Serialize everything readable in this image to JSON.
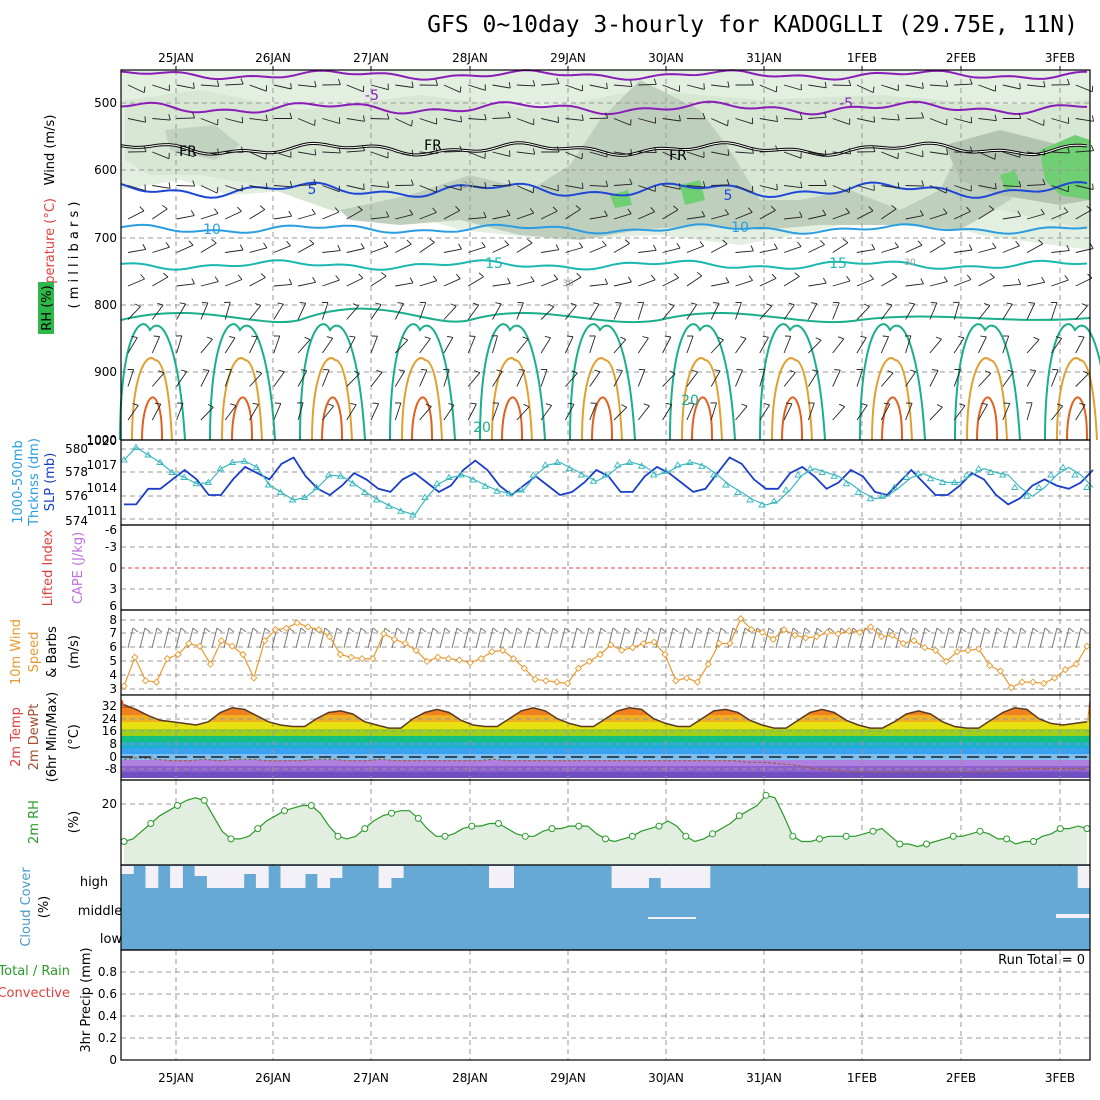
{
  "title": "GFS 0~10day 3-hourly for KADOGLLI (29.75E, 11N)",
  "dates": [
    "25JAN",
    "26JAN",
    "27JAN",
    "28JAN",
    "29JAN",
    "30JAN",
    "31JAN",
    "1FEB",
    "2FEB",
    "3FEB"
  ],
  "colors": {
    "purple": "#8a1db8",
    "blue": "#1f47d6",
    "lightblue": "#2a9ee0",
    "teal": "#1ab8b0",
    "green": "#1aae8c",
    "orange": "#e0a030",
    "darkorange": "#e06020",
    "red": "#d02030",
    "wind": "#e89a30",
    "cloud": "#66a9d4",
    "rh_green": "#2a9a2a",
    "thick": "#3ab8c0",
    "slp": "#1a3ec8"
  },
  "panels": {
    "upper": {
      "ylabel_wind": "Wind (m/s)",
      "ylabel_temp": "Temperature (°C)",
      "ylabel_units": "( m i l l i b a r s )",
      "ylabel_rh": "RH (%)",
      "ticks": [
        "500",
        "600",
        "700",
        "800",
        "900",
        "1000"
      ],
      "contour_labels": [
        "-5",
        "-5",
        "FR",
        "FR",
        "FR",
        "5",
        "5",
        "10",
        "10",
        "15",
        "15",
        "20",
        "20",
        "30",
        "30",
        "30"
      ]
    },
    "slp": {
      "ylabel_left": "1000-500mb",
      "ylabel_left2": "Thcknss (dm)",
      "ylabel_right": "SLP (mb)",
      "ticks_left": [
        "580",
        "578",
        "576",
        "574"
      ],
      "ticks_right": [
        "1020",
        "1017",
        "1014",
        "1011"
      ]
    },
    "li": {
      "ylabel_left": "Lifted Index",
      "ylabel_right": "CAPE (J/kg)",
      "ticks": [
        "-6",
        "-3",
        "0",
        "3",
        "6"
      ]
    },
    "wind": {
      "ylabel_line1": "10m Wind",
      "ylabel_line2": "Speed",
      "ylabel_line3": "& Barbs",
      "ylabel_units": "(m/s)",
      "ticks": [
        "8",
        "7",
        "6",
        "5",
        "4",
        "3"
      ]
    },
    "temp": {
      "ylabel_line1": "2m Temp",
      "ylabel_line2": "2m DewPt",
      "ylabel_line3": "(6hr Min/Max)",
      "ylabel_units": "(°C)",
      "ticks": [
        "32",
        "24",
        "16",
        "8",
        "0",
        "-8"
      ]
    },
    "rh": {
      "ylabel": "2m RH",
      "ylabel_units": "(%)",
      "ticks": [
        "20"
      ]
    },
    "cloud": {
      "ylabel": "Cloud Cover",
      "ylabel_units": "(%)",
      "levels": [
        "high",
        "middle",
        "low"
      ]
    },
    "precip": {
      "ylabel_line1": "Total / Rain",
      "ylabel_line2": "Convective",
      "ylabel_units": "3hr Precip (mm)",
      "run_total": "Run Total = 0",
      "ticks": [
        "0.8",
        "0.6",
        "0.4",
        "0.2",
        "0"
      ]
    }
  },
  "chart_data": [
    {
      "type": "line",
      "name": "slp_thickness",
      "x_unit": "3-hourly steps",
      "series": [
        {
          "name": "SLP (mb)",
          "axis": "right",
          "values": [
            1010.5,
            1010.5,
            1013,
            1013,
            1014.5,
            1016,
            1014.5,
            1012,
            1012,
            1014.5,
            1016.5,
            1015.5,
            1014.5,
            1017,
            1018,
            1015,
            1013,
            1012,
            1013.5,
            1015.5,
            1014.5,
            1013,
            1012.5,
            1014.5,
            1015.5,
            1014,
            1012.5,
            1013.5,
            1016,
            1017.5,
            1016,
            1013.5,
            1012,
            1013.5,
            1015,
            1013.5,
            1012,
            1012.5,
            1014,
            1016,
            1015,
            1012.5,
            1012.5,
            1015,
            1016.5,
            1015.5,
            1014,
            1012.5,
            1013,
            1015.5,
            1018,
            1017,
            1014.5,
            1013,
            1013,
            1015.5,
            1016.5,
            1015,
            1013,
            1014,
            1016,
            1015,
            1012.5,
            1012,
            1014,
            1016,
            1014,
            1012,
            1012,
            1013.5,
            1015.5,
            1014.5,
            1012,
            1010.5,
            1011.5,
            1013.5,
            1014.5,
            1013.5,
            1013,
            1014,
            1016
          ]
        },
        {
          "name": "1000-500mb Thickness (dm)",
          "axis": "left",
          "values": [
            578.8,
            579.8,
            579.2,
            578.6,
            577.8,
            577.4,
            576.9,
            577,
            578.1,
            578.6,
            578.7,
            578.2,
            576.8,
            576.2,
            575.6,
            575.8,
            576.6,
            577.6,
            577.5,
            576.9,
            576.2,
            575.6,
            575.1,
            574.7,
            574.4,
            575.8,
            576.9,
            577.4,
            577.6,
            577.2,
            576.7,
            576.3,
            576.1,
            576.4,
            577.6,
            578.4,
            578.6,
            578.1,
            577.6,
            577.1,
            577.6,
            578.4,
            578.6,
            578.3,
            577.6,
            577.9,
            578.4,
            578.6,
            578.3,
            577.6,
            576.8,
            576.2,
            575.6,
            575.2,
            575.5,
            576.4,
            577.6,
            578.1,
            577.8,
            577.5,
            576.9,
            576.2,
            575.7,
            575.9,
            576.6,
            577.4,
            577.7,
            577.3,
            577,
            577,
            577.6,
            578.1,
            577.8,
            577.6,
            576.6,
            575.9,
            576.6,
            577.6,
            578.2,
            577.6,
            576.6
          ]
        }
      ],
      "ylim_left": [
        574,
        580
      ],
      "ylim_right": [
        1008,
        1020
      ]
    },
    {
      "type": "line",
      "name": "lifted_index",
      "series": [
        {
          "name": "Lifted Index",
          "values": [
            0,
            0,
            0,
            0,
            0,
            0,
            0,
            0,
            0,
            0
          ]
        }
      ],
      "ylim": [
        6,
        -6
      ]
    },
    {
      "type": "line",
      "name": "wind_speed_10m",
      "series": [
        {
          "name": "10m Wind Speed (m/s)",
          "values": [
            3.2,
            5.3,
            3.6,
            3.5,
            5.2,
            5.5,
            6.3,
            6.1,
            4.8,
            6.5,
            6.1,
            5.5,
            3.8,
            6.5,
            7.3,
            7.4,
            7.8,
            7.5,
            7.3,
            6.8,
            5.5,
            5.3,
            5.2,
            5.2,
            7,
            6.6,
            6.3,
            5.8,
            5,
            5.3,
            5.2,
            5.1,
            4.9,
            5.2,
            5.7,
            5.8,
            5.2,
            4.5,
            3.7,
            3.6,
            3.5,
            3.4,
            4.5,
            5,
            5.5,
            6.2,
            5.8,
            6,
            6.3,
            6.4,
            5.5,
            3.6,
            3.8,
            3.5,
            4.8,
            6.3,
            6.3,
            8.1,
            7.3,
            7.1,
            6.6,
            7.3,
            6.9,
            6.7,
            6.8,
            7.1,
            7,
            7.2,
            7.1,
            7.5,
            6.8,
            6.9,
            6.3,
            6.5,
            6,
            5.8,
            5,
            5.7,
            5.8,
            5.9,
            4.7,
            4.3,
            3.1,
            3.5,
            3.5,
            3.4,
            3.8,
            4.4,
            4.8,
            6.1
          ]
        }
      ],
      "ylim": [
        3,
        8
      ]
    },
    {
      "type": "area",
      "name": "temp_2m",
      "series": [
        {
          "name": "2m Temp (°C)",
          "values": [
            33,
            30,
            26,
            23,
            22,
            21,
            20,
            22,
            28,
            31,
            30,
            26,
            22,
            20,
            19,
            19,
            24,
            28,
            29,
            27,
            22,
            20,
            18,
            18,
            24,
            28,
            30,
            28,
            23,
            20,
            19,
            19,
            24,
            29,
            31,
            29,
            24,
            21,
            19,
            19,
            24,
            29,
            31,
            30,
            24,
            21,
            19,
            19,
            24,
            29,
            30,
            28,
            23,
            20,
            18,
            18,
            23,
            28,
            30,
            28,
            23,
            20,
            18,
            18,
            22,
            27,
            29,
            27,
            22,
            19,
            18,
            18,
            23,
            28,
            31,
            30,
            24,
            21,
            20,
            21,
            22
          ]
        },
        {
          "name": "2m DewPt (°C)",
          "values": [
            -2,
            -1,
            -2,
            -3,
            -3,
            -2,
            -3,
            -2,
            -2,
            -3,
            -3,
            -3,
            -2,
            -2,
            -3,
            -3,
            -2,
            -3,
            -3,
            -3,
            -3,
            -3,
            -3,
            -2,
            -3,
            -3,
            -3,
            -3,
            -3,
            -3,
            -3,
            -3,
            -3,
            -3,
            -3,
            -3,
            -3,
            -3,
            -3,
            -4,
            -4,
            -5,
            -6,
            -8,
            -9,
            -10,
            -10,
            -10,
            -10,
            -10,
            -10,
            -10,
            -10,
            -10,
            -10,
            -9,
            -8,
            -8,
            -8,
            -8,
            -8
          ]
        }
      ],
      "ylim": [
        -14,
        36
      ]
    },
    {
      "type": "area",
      "name": "rh_2m",
      "series": [
        {
          "name": "2m RH (%)",
          "values": [
            8,
            9,
            12,
            15,
            18,
            20,
            22,
            24,
            25,
            24,
            18,
            12,
            9,
            9,
            10,
            13,
            16,
            18,
            20,
            21,
            22,
            22,
            19,
            14,
            10,
            9,
            10,
            13,
            16,
            18,
            19,
            20,
            20,
            17,
            13,
            10,
            10,
            11,
            13,
            14,
            14,
            15,
            15,
            13,
            11,
            10,
            10,
            12,
            13,
            13,
            14,
            14,
            14,
            11,
            9,
            8,
            9,
            10,
            12,
            13,
            14,
            16,
            14,
            10,
            8,
            9,
            11,
            13,
            15,
            18,
            20,
            22,
            26,
            25,
            18,
            10,
            8,
            8,
            9,
            10,
            10,
            10,
            10,
            11,
            12,
            13,
            10,
            7,
            7,
            6,
            7,
            8,
            9,
            10,
            10,
            11,
            12,
            11,
            9,
            9,
            7,
            8,
            8,
            10,
            11,
            13,
            13,
            14,
            13
          ]
        }
      ],
      "ylim": [
        0,
        30
      ]
    },
    {
      "type": "bar",
      "name": "precip_3hr",
      "series": [
        {
          "name": "3hr Precip (mm)",
          "values": [
            0,
            0,
            0,
            0,
            0,
            0,
            0,
            0,
            0,
            0
          ]
        }
      ],
      "ylim": [
        0,
        1
      ]
    }
  ]
}
